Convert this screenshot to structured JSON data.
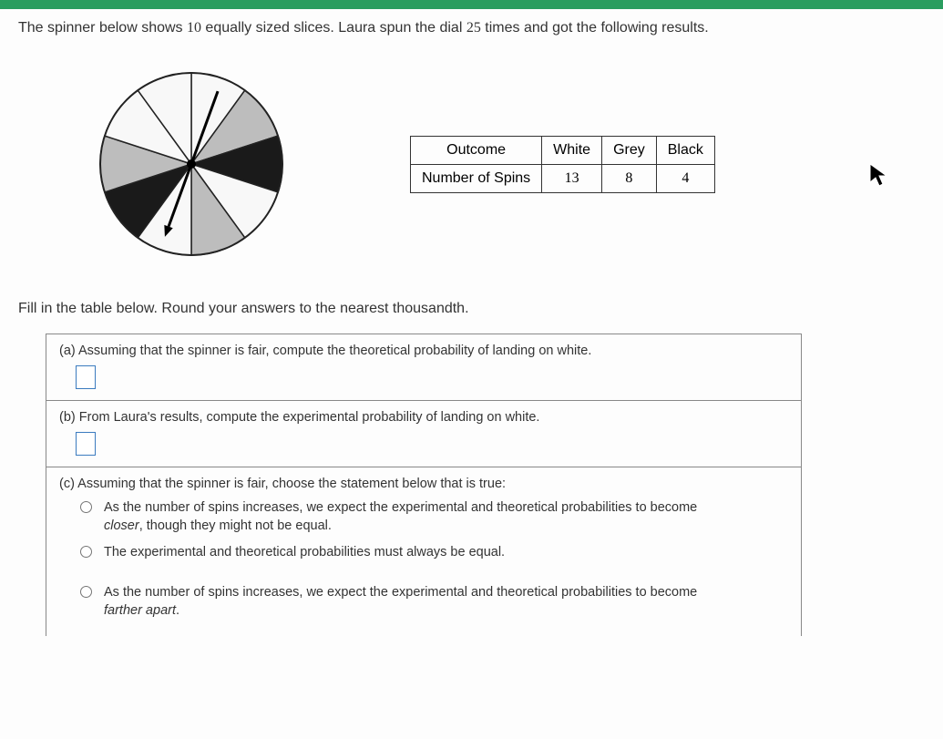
{
  "problem": {
    "prefix": "The spinner below shows ",
    "slices": "10",
    "mid1": " equally sized slices. Laura spun the dial ",
    "spins": "25",
    "suffix": " times and got the following results."
  },
  "spinner": {
    "slices": 10,
    "colors": [
      "#f8f8f8",
      "#bdbdbd",
      "#1a1a1a",
      "#f8f8f8",
      "#bdbdbd",
      "#f8f8f8",
      "#1a1a1a",
      "#bdbdbd",
      "#f8f8f8",
      "#f8f8f8"
    ],
    "outline": "#222",
    "pointer_angle_deg": 200
  },
  "outcome_table": {
    "h0": "Outcome",
    "h1": "White",
    "h2": "Grey",
    "h3": "Black",
    "r0": "Number of Spins",
    "r1": "13",
    "r2": "8",
    "r3": "4"
  },
  "instruction": "Fill in the table below. Round your answers to the nearest thousandth.",
  "parts": {
    "a": {
      "label": "(a)",
      "text": "Assuming that the spinner is fair, compute the theoretical probability of landing on white."
    },
    "b": {
      "label": "(b)",
      "text": "From Laura's results, compute the experimental probability of landing on white."
    },
    "c": {
      "label": "(c)",
      "text": "Assuming that the spinner is fair, choose the statement below that is true:",
      "opt1_a": "As the number of spins increases, we expect the experimental and theoretical probabilities to become ",
      "opt1_i": "closer",
      "opt1_b": ", though they might not be equal.",
      "opt2": "The experimental and theoretical probabilities must always be equal.",
      "opt3_a": "As the number of spins increases, we expect the experimental and theoretical probabilities to become ",
      "opt3_i": "farther apart",
      "opt3_b": "."
    }
  }
}
